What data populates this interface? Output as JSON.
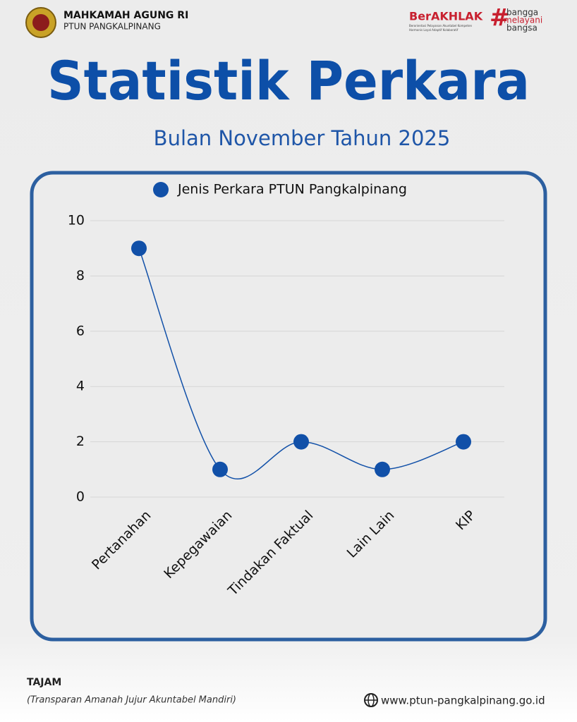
{
  "header": {
    "org": "MAHKAMAH AGUNG RI",
    "unit": "PTUN PANGKALPINANG",
    "brand": "BerAKHLAK",
    "brand_tagline": [
      "Berorientasi Pelayanan Akuntabel Kompeten",
      "Harmonis Loyal Adaptif Kolaboratif"
    ],
    "hashtag": "#",
    "slogan": [
      "bangga",
      "melayani",
      "bangsa"
    ]
  },
  "chart_data": {
    "type": "line",
    "title": "Statistik Perkara",
    "subtitle": "Bulan November Tahun 2025",
    "categories": [
      "Pertanahan",
      "Kepegawaian",
      "Tindakan Faktual",
      "Lain Lain",
      "KIP"
    ],
    "series": [
      {
        "name": "Jenis Perkara PTUN Pangkalpinang",
        "color": "#1150a8",
        "values": [
          9,
          1,
          2,
          1,
          2
        ]
      }
    ],
    "ylim": [
      0,
      10
    ],
    "yticks": [
      0,
      2,
      4,
      6,
      8,
      10
    ],
    "grid": true,
    "smooth": true,
    "legend": "top"
  },
  "footer": {
    "motto": "TAJAM",
    "motto_meaning": "(Transparan Amanah Jujur Akuntabel Mandiri)",
    "website": "www.ptun-pangkalpinang.go.id"
  }
}
